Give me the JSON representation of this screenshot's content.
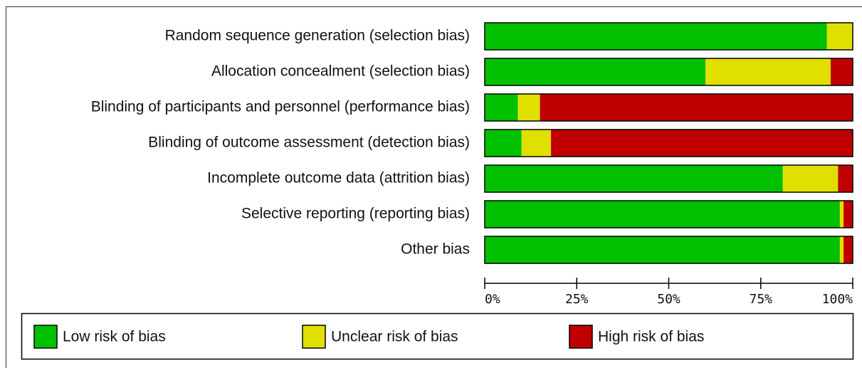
{
  "chart_data": {
    "type": "stacked-bar-horizontal",
    "categories": [
      "Random sequence generation (selection bias)",
      "Allocation concealment (selection bias)",
      "Blinding of participants and personnel (performance bias)",
      "Blinding of outcome assessment (detection bias)",
      "Incomplete outcome data (attrition bias)",
      "Selective reporting (reporting bias)",
      "Other bias"
    ],
    "series": [
      {
        "name": "Low risk of bias",
        "color": "#00c000",
        "values": [
          93,
          60,
          9,
          10,
          81,
          96.5,
          96.5
        ]
      },
      {
        "name": "Unclear risk of bias",
        "color": "#e0e000",
        "values": [
          7,
          34,
          6,
          8,
          15,
          1,
          1
        ]
      },
      {
        "name": "High risk of bias",
        "color": "#c00000",
        "values": [
          0,
          6,
          85,
          82,
          4,
          2.5,
          2.5
        ]
      }
    ],
    "xlim": [
      0,
      100
    ],
    "xticks": [
      {
        "value": 0,
        "label": "0%"
      },
      {
        "value": 25,
        "label": "25%"
      },
      {
        "value": 50,
        "label": "50%"
      },
      {
        "value": 75,
        "label": "75%"
      },
      {
        "value": 100,
        "label": "100%"
      }
    ]
  }
}
